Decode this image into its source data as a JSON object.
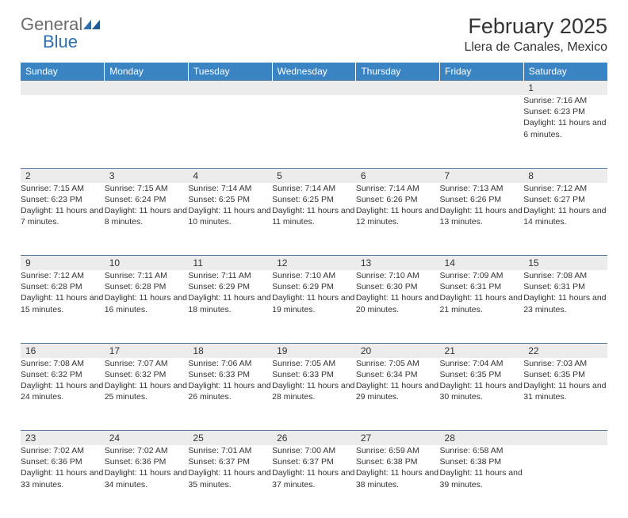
{
  "brand": {
    "part1": "General",
    "part2": "Blue",
    "logo_color": "#2f6fb0",
    "text_gray": "#6b6b6b"
  },
  "title": {
    "month": "February 2025",
    "location": "Llera de Canales, Mexico"
  },
  "colors": {
    "header_bg": "#3b84c4",
    "header_text": "#ffffff",
    "daynum_bg": "#ececec",
    "rule": "#5a7da0",
    "body_text": "#333333"
  },
  "weekdays": [
    "Sunday",
    "Monday",
    "Tuesday",
    "Wednesday",
    "Thursday",
    "Friday",
    "Saturday"
  ],
  "weeks": [
    {
      "nums": [
        "",
        "",
        "",
        "",
        "",
        "",
        "1"
      ],
      "cells": [
        null,
        null,
        null,
        null,
        null,
        null,
        {
          "sunrise": "Sunrise: 7:16 AM",
          "sunset": "Sunset: 6:23 PM",
          "daylight": "Daylight: 11 hours and 6 minutes."
        }
      ]
    },
    {
      "nums": [
        "2",
        "3",
        "4",
        "5",
        "6",
        "7",
        "8"
      ],
      "cells": [
        {
          "sunrise": "Sunrise: 7:15 AM",
          "sunset": "Sunset: 6:23 PM",
          "daylight": "Daylight: 11 hours and 7 minutes."
        },
        {
          "sunrise": "Sunrise: 7:15 AM",
          "sunset": "Sunset: 6:24 PM",
          "daylight": "Daylight: 11 hours and 8 minutes."
        },
        {
          "sunrise": "Sunrise: 7:14 AM",
          "sunset": "Sunset: 6:25 PM",
          "daylight": "Daylight: 11 hours and 10 minutes."
        },
        {
          "sunrise": "Sunrise: 7:14 AM",
          "sunset": "Sunset: 6:25 PM",
          "daylight": "Daylight: 11 hours and 11 minutes."
        },
        {
          "sunrise": "Sunrise: 7:14 AM",
          "sunset": "Sunset: 6:26 PM",
          "daylight": "Daylight: 11 hours and 12 minutes."
        },
        {
          "sunrise": "Sunrise: 7:13 AM",
          "sunset": "Sunset: 6:26 PM",
          "daylight": "Daylight: 11 hours and 13 minutes."
        },
        {
          "sunrise": "Sunrise: 7:12 AM",
          "sunset": "Sunset: 6:27 PM",
          "daylight": "Daylight: 11 hours and 14 minutes."
        }
      ]
    },
    {
      "nums": [
        "9",
        "10",
        "11",
        "12",
        "13",
        "14",
        "15"
      ],
      "cells": [
        {
          "sunrise": "Sunrise: 7:12 AM",
          "sunset": "Sunset: 6:28 PM",
          "daylight": "Daylight: 11 hours and 15 minutes."
        },
        {
          "sunrise": "Sunrise: 7:11 AM",
          "sunset": "Sunset: 6:28 PM",
          "daylight": "Daylight: 11 hours and 16 minutes."
        },
        {
          "sunrise": "Sunrise: 7:11 AM",
          "sunset": "Sunset: 6:29 PM",
          "daylight": "Daylight: 11 hours and 18 minutes."
        },
        {
          "sunrise": "Sunrise: 7:10 AM",
          "sunset": "Sunset: 6:29 PM",
          "daylight": "Daylight: 11 hours and 19 minutes."
        },
        {
          "sunrise": "Sunrise: 7:10 AM",
          "sunset": "Sunset: 6:30 PM",
          "daylight": "Daylight: 11 hours and 20 minutes."
        },
        {
          "sunrise": "Sunrise: 7:09 AM",
          "sunset": "Sunset: 6:31 PM",
          "daylight": "Daylight: 11 hours and 21 minutes."
        },
        {
          "sunrise": "Sunrise: 7:08 AM",
          "sunset": "Sunset: 6:31 PM",
          "daylight": "Daylight: 11 hours and 23 minutes."
        }
      ]
    },
    {
      "nums": [
        "16",
        "17",
        "18",
        "19",
        "20",
        "21",
        "22"
      ],
      "cells": [
        {
          "sunrise": "Sunrise: 7:08 AM",
          "sunset": "Sunset: 6:32 PM",
          "daylight": "Daylight: 11 hours and 24 minutes."
        },
        {
          "sunrise": "Sunrise: 7:07 AM",
          "sunset": "Sunset: 6:32 PM",
          "daylight": "Daylight: 11 hours and 25 minutes."
        },
        {
          "sunrise": "Sunrise: 7:06 AM",
          "sunset": "Sunset: 6:33 PM",
          "daylight": "Daylight: 11 hours and 26 minutes."
        },
        {
          "sunrise": "Sunrise: 7:05 AM",
          "sunset": "Sunset: 6:33 PM",
          "daylight": "Daylight: 11 hours and 28 minutes."
        },
        {
          "sunrise": "Sunrise: 7:05 AM",
          "sunset": "Sunset: 6:34 PM",
          "daylight": "Daylight: 11 hours and 29 minutes."
        },
        {
          "sunrise": "Sunrise: 7:04 AM",
          "sunset": "Sunset: 6:35 PM",
          "daylight": "Daylight: 11 hours and 30 minutes."
        },
        {
          "sunrise": "Sunrise: 7:03 AM",
          "sunset": "Sunset: 6:35 PM",
          "daylight": "Daylight: 11 hours and 31 minutes."
        }
      ]
    },
    {
      "nums": [
        "23",
        "24",
        "25",
        "26",
        "27",
        "28",
        ""
      ],
      "cells": [
        {
          "sunrise": "Sunrise: 7:02 AM",
          "sunset": "Sunset: 6:36 PM",
          "daylight": "Daylight: 11 hours and 33 minutes."
        },
        {
          "sunrise": "Sunrise: 7:02 AM",
          "sunset": "Sunset: 6:36 PM",
          "daylight": "Daylight: 11 hours and 34 minutes."
        },
        {
          "sunrise": "Sunrise: 7:01 AM",
          "sunset": "Sunset: 6:37 PM",
          "daylight": "Daylight: 11 hours and 35 minutes."
        },
        {
          "sunrise": "Sunrise: 7:00 AM",
          "sunset": "Sunset: 6:37 PM",
          "daylight": "Daylight: 11 hours and 37 minutes."
        },
        {
          "sunrise": "Sunrise: 6:59 AM",
          "sunset": "Sunset: 6:38 PM",
          "daylight": "Daylight: 11 hours and 38 minutes."
        },
        {
          "sunrise": "Sunrise: 6:58 AM",
          "sunset": "Sunset: 6:38 PM",
          "daylight": "Daylight: 11 hours and 39 minutes."
        },
        null
      ]
    }
  ]
}
